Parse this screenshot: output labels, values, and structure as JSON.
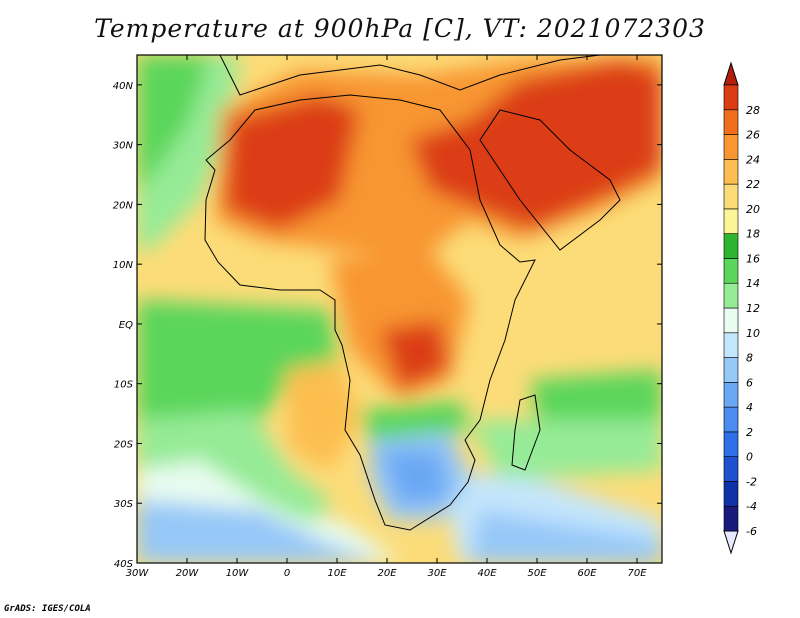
{
  "title": "Temperature at 900hPa [C], VT: 2021072303",
  "credit": "GrADS: IGES/COLA",
  "map": {
    "lon_range": [
      -30,
      75
    ],
    "lat_range": [
      -40,
      45
    ],
    "lon_ticks": [
      "30W",
      "20W",
      "10W",
      "0",
      "10E",
      "20E",
      "30E",
      "40E",
      "50E",
      "60E",
      "70E"
    ],
    "lon_values": [
      -30,
      -20,
      -10,
      0,
      10,
      20,
      30,
      40,
      50,
      60,
      70
    ],
    "lat_ticks": [
      "40S",
      "30S",
      "20S",
      "10S",
      "EQ",
      "10N",
      "20N",
      "30N",
      "40N"
    ],
    "lat_values": [
      -40,
      -30,
      -20,
      -10,
      0,
      10,
      20,
      30,
      40
    ]
  },
  "colorbar": {
    "labels": [
      "-6",
      "-4",
      "-2",
      "0",
      "2",
      "4",
      "6",
      "8",
      "10",
      "12",
      "14",
      "16",
      "18",
      "20",
      "22",
      "24",
      "26",
      "28"
    ],
    "colors": [
      "#1a1a7a",
      "#1032a8",
      "#1e50d0",
      "#2e6ee6",
      "#4a8cf0",
      "#6aa8f4",
      "#96c8f8",
      "#c4e6fc",
      "#e8fcf0",
      "#96eb96",
      "#5ad65a",
      "#2eb42e",
      "#fcf496",
      "#fcdc78",
      "#fcbe50",
      "#f89632",
      "#f06e1e",
      "#dc3c14",
      "#b41e0a"
    ],
    "under_color": "#e8e8ff",
    "over_color": "#b41e0a"
  }
}
